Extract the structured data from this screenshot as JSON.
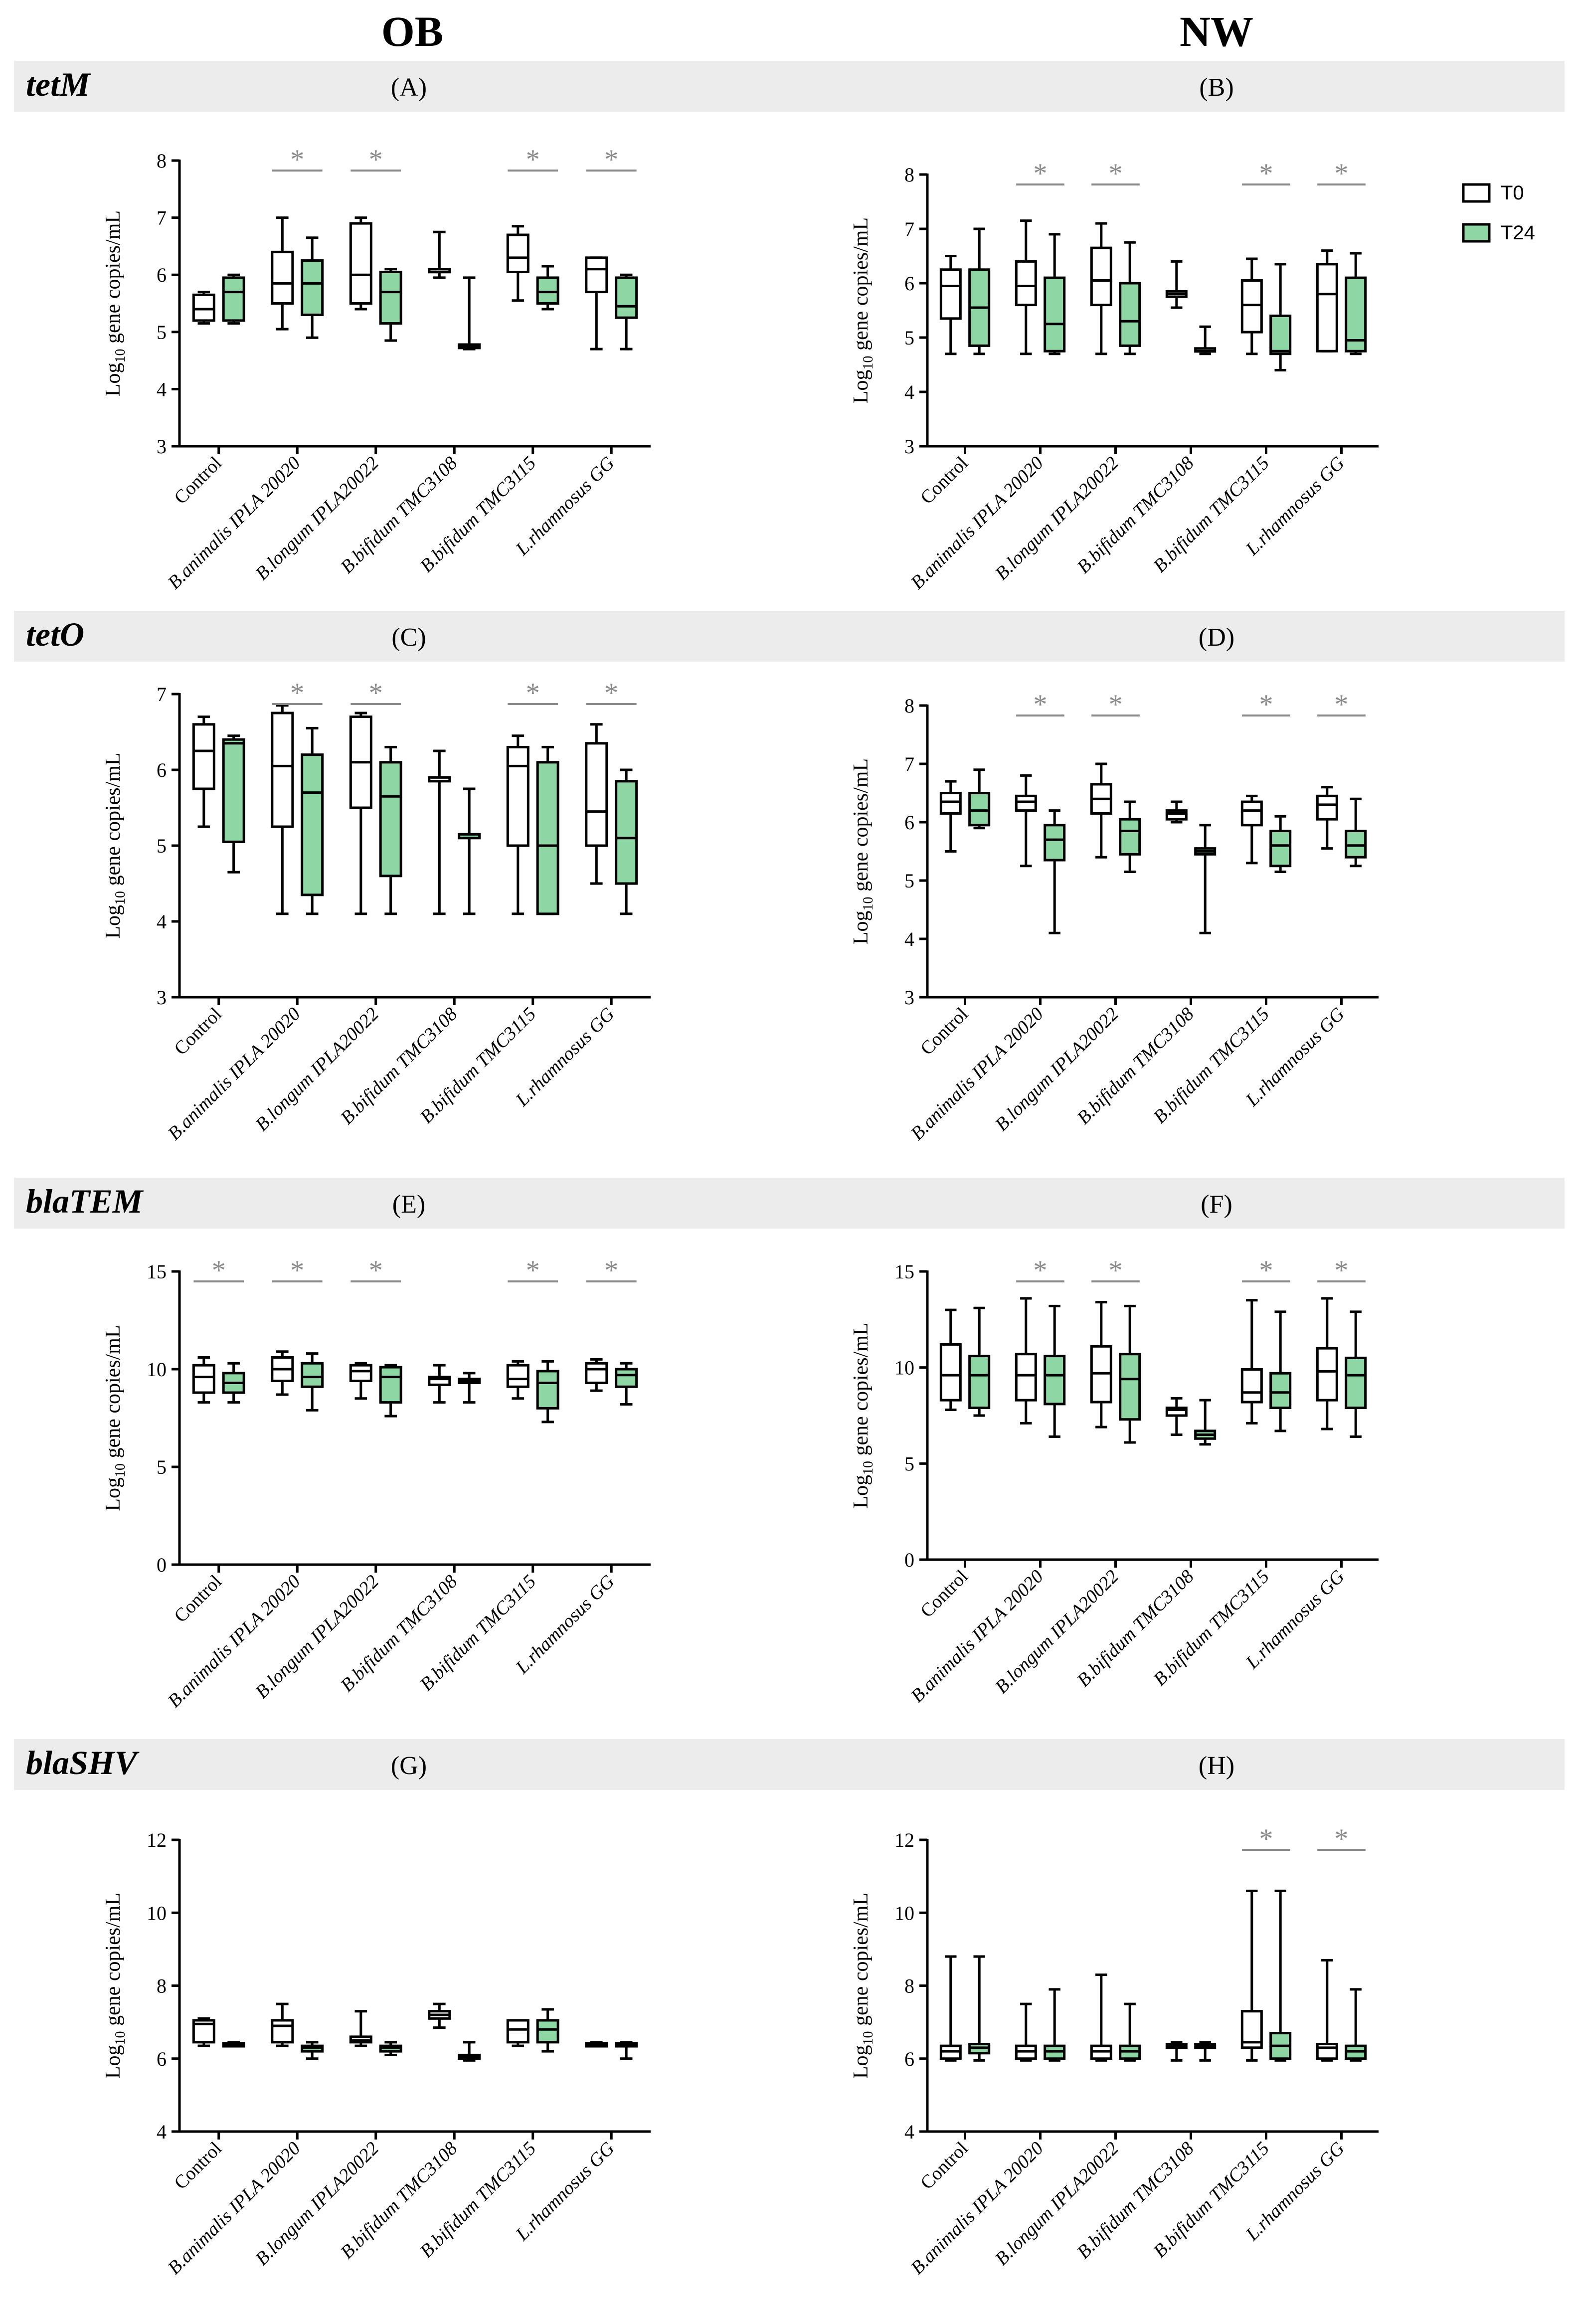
{
  "columns": {
    "left": "OB",
    "right": "NW"
  },
  "categories": [
    "Control",
    "B.animalis IPLA 20020",
    "B.longum IPLA20022",
    "B.bifidum TMC3108",
    "B.bifidum TMC3115",
    "L.rhamnosus GG"
  ],
  "legend": [
    {
      "label": "T0",
      "color": "#ffffff"
    },
    {
      "label": "T24",
      "color": "#8fd6a5"
    }
  ],
  "sig_marker": "*",
  "ylabel": {
    "prefix": "Log",
    "sub": "10",
    "suffix": " gene copies/mL"
  },
  "colors": {
    "band": "#ececec",
    "t0": "#ffffff",
    "t24": "#8fd6a5",
    "stroke": "#000000",
    "sig": "#8a8a8a"
  },
  "rows": [
    {
      "gene": "tetM",
      "panels": [
        "(A)",
        "(B)"
      ]
    },
    {
      "gene": "tetO",
      "panels": [
        "(C)",
        "(D)"
      ]
    },
    {
      "gene": "blaTEM",
      "panels": [
        "(E)",
        "(F)"
      ]
    },
    {
      "gene": "blaSHV",
      "panels": [
        "(G)",
        "(H)"
      ]
    }
  ],
  "chart_data": [
    {
      "panel": "(A)",
      "type": "boxplot",
      "gene": "tetM",
      "group": "OB",
      "ylim": [
        3,
        8
      ],
      "yticks": [
        3,
        4,
        5,
        6,
        7,
        8
      ],
      "significant": [
        false,
        true,
        true,
        false,
        true,
        true
      ],
      "series": [
        {
          "name": "T0",
          "boxes": [
            [
              5.15,
              5.2,
              5.4,
              5.65,
              5.7
            ],
            [
              5.05,
              5.5,
              5.85,
              6.4,
              7.0
            ],
            [
              5.4,
              5.5,
              6.0,
              6.9,
              7.0
            ],
            [
              5.95,
              6.05,
              6.1,
              6.1,
              6.75
            ],
            [
              5.55,
              6.05,
              6.3,
              6.7,
              6.85
            ],
            [
              4.7,
              5.7,
              6.1,
              6.3,
              6.3
            ]
          ]
        },
        {
          "name": "T24",
          "boxes": [
            [
              5.15,
              5.2,
              5.7,
              5.95,
              6.0
            ],
            [
              4.9,
              5.3,
              5.85,
              6.25,
              6.65
            ],
            [
              4.85,
              5.15,
              5.7,
              6.05,
              6.1
            ],
            [
              4.7,
              4.72,
              4.75,
              4.78,
              5.95
            ],
            [
              5.4,
              5.5,
              5.7,
              5.95,
              6.15
            ],
            [
              4.7,
              5.25,
              5.45,
              5.95,
              6.0
            ]
          ]
        }
      ]
    },
    {
      "panel": "(B)",
      "type": "boxplot",
      "gene": "tetM",
      "group": "NW",
      "ylim": [
        3,
        8
      ],
      "yticks": [
        3,
        4,
        5,
        6,
        7,
        8
      ],
      "significant": [
        false,
        true,
        true,
        false,
        true,
        true
      ],
      "series": [
        {
          "name": "T0",
          "boxes": [
            [
              4.7,
              5.35,
              5.95,
              6.25,
              6.5
            ],
            [
              4.7,
              5.6,
              5.95,
              6.4,
              7.15
            ],
            [
              4.7,
              5.6,
              6.05,
              6.65,
              7.1
            ],
            [
              5.55,
              5.75,
              5.8,
              5.85,
              6.4
            ],
            [
              4.7,
              5.1,
              5.6,
              6.05,
              6.45
            ],
            [
              4.75,
              4.75,
              5.8,
              6.35,
              6.6
            ]
          ]
        },
        {
          "name": "T24",
          "boxes": [
            [
              4.7,
              4.85,
              5.55,
              6.25,
              7.0
            ],
            [
              4.7,
              4.75,
              5.25,
              6.1,
              6.9
            ],
            [
              4.7,
              4.85,
              5.3,
              6.0,
              6.75
            ],
            [
              4.7,
              4.75,
              4.75,
              4.8,
              5.2
            ],
            [
              4.4,
              4.7,
              4.75,
              5.4,
              6.35
            ],
            [
              4.7,
              4.75,
              4.95,
              6.1,
              6.55
            ]
          ]
        }
      ]
    },
    {
      "panel": "(C)",
      "type": "boxplot",
      "gene": "tetO",
      "group": "OB",
      "ylim": [
        3,
        7
      ],
      "yticks": [
        3,
        4,
        5,
        6,
        7
      ],
      "significant": [
        false,
        true,
        true,
        false,
        true,
        true
      ],
      "series": [
        {
          "name": "T0",
          "boxes": [
            [
              5.25,
              5.75,
              6.25,
              6.6,
              6.7
            ],
            [
              4.1,
              5.25,
              6.05,
              6.75,
              6.85
            ],
            [
              4.1,
              5.5,
              6.1,
              6.7,
              6.75
            ],
            [
              4.1,
              5.85,
              5.9,
              5.9,
              6.25
            ],
            [
              4.1,
              5.0,
              6.05,
              6.3,
              6.45
            ],
            [
              4.5,
              5.0,
              5.45,
              6.35,
              6.6
            ]
          ]
        },
        {
          "name": "T24",
          "boxes": [
            [
              4.65,
              5.05,
              6.35,
              6.4,
              6.45
            ],
            [
              4.1,
              4.35,
              5.7,
              6.2,
              6.55
            ],
            [
              4.1,
              4.6,
              5.65,
              6.1,
              6.3
            ],
            [
              4.1,
              5.1,
              5.15,
              5.15,
              5.75
            ],
            [
              4.1,
              4.1,
              5.0,
              6.1,
              6.3
            ],
            [
              4.1,
              4.5,
              5.1,
              5.85,
              6.0
            ]
          ]
        }
      ]
    },
    {
      "panel": "(D)",
      "type": "boxplot",
      "gene": "tetO",
      "group": "NW",
      "ylim": [
        3,
        8
      ],
      "yticks": [
        3,
        4,
        5,
        6,
        7,
        8
      ],
      "significant": [
        false,
        true,
        true,
        false,
        true,
        true
      ],
      "series": [
        {
          "name": "T0",
          "boxes": [
            [
              5.5,
              6.15,
              6.35,
              6.5,
              6.7
            ],
            [
              5.25,
              6.2,
              6.35,
              6.45,
              6.8
            ],
            [
              5.4,
              6.15,
              6.4,
              6.65,
              7.0
            ],
            [
              6.0,
              6.05,
              6.15,
              6.2,
              6.35
            ],
            [
              5.3,
              5.95,
              6.2,
              6.35,
              6.45
            ],
            [
              5.55,
              6.05,
              6.3,
              6.45,
              6.6
            ]
          ]
        },
        {
          "name": "T24",
          "boxes": [
            [
              5.9,
              5.95,
              6.2,
              6.5,
              6.9
            ],
            [
              4.1,
              5.35,
              5.7,
              5.95,
              6.2
            ],
            [
              5.15,
              5.45,
              5.85,
              6.05,
              6.35
            ],
            [
              4.1,
              5.45,
              5.5,
              5.55,
              5.95
            ],
            [
              5.15,
              5.25,
              5.6,
              5.85,
              6.1
            ],
            [
              5.25,
              5.4,
              5.6,
              5.85,
              6.4
            ]
          ]
        }
      ]
    },
    {
      "panel": "(E)",
      "type": "boxplot",
      "gene": "blaTEM",
      "group": "OB",
      "ylim": [
        0,
        15
      ],
      "yticks": [
        0,
        5,
        10,
        15
      ],
      "significant": [
        true,
        true,
        true,
        false,
        true,
        true
      ],
      "series": [
        {
          "name": "T0",
          "boxes": [
            [
              8.3,
              8.8,
              9.6,
              10.2,
              10.6
            ],
            [
              8.7,
              9.4,
              10.0,
              10.6,
              10.9
            ],
            [
              8.5,
              9.4,
              9.9,
              10.2,
              10.3
            ],
            [
              8.3,
              9.2,
              9.5,
              9.6,
              10.2
            ],
            [
              8.5,
              9.1,
              9.5,
              10.2,
              10.4
            ],
            [
              8.9,
              9.3,
              10.0,
              10.3,
              10.5
            ]
          ]
        },
        {
          "name": "T24",
          "boxes": [
            [
              8.3,
              8.8,
              9.3,
              9.8,
              10.3
            ],
            [
              7.9,
              9.1,
              9.6,
              10.3,
              10.8
            ],
            [
              7.6,
              8.3,
              9.6,
              10.1,
              10.2
            ],
            [
              8.3,
              9.3,
              9.4,
              9.5,
              9.8
            ],
            [
              7.3,
              8.0,
              9.3,
              9.9,
              10.4
            ],
            [
              8.2,
              9.1,
              9.7,
              10.0,
              10.3
            ]
          ]
        }
      ]
    },
    {
      "panel": "(F)",
      "type": "boxplot",
      "gene": "blaTEM",
      "group": "NW",
      "ylim": [
        0,
        15
      ],
      "yticks": [
        0,
        5,
        10,
        15
      ],
      "significant": [
        false,
        true,
        true,
        false,
        true,
        true
      ],
      "series": [
        {
          "name": "T0",
          "boxes": [
            [
              7.8,
              8.3,
              9.6,
              11.2,
              13.0
            ],
            [
              7.1,
              8.3,
              9.6,
              10.7,
              13.6
            ],
            [
              6.9,
              8.2,
              9.7,
              11.1,
              13.4
            ],
            [
              6.5,
              7.5,
              7.8,
              7.9,
              8.4
            ],
            [
              7.1,
              8.2,
              8.7,
              9.9,
              13.5
            ],
            [
              6.8,
              8.3,
              9.8,
              11.0,
              13.6
            ]
          ]
        },
        {
          "name": "T24",
          "boxes": [
            [
              7.5,
              7.9,
              9.6,
              10.6,
              13.1
            ],
            [
              6.4,
              8.1,
              9.6,
              10.6,
              13.2
            ],
            [
              6.1,
              7.3,
              9.4,
              10.7,
              13.2
            ],
            [
              6.0,
              6.3,
              6.5,
              6.7,
              8.3
            ],
            [
              6.7,
              7.9,
              8.7,
              9.7,
              12.9
            ],
            [
              6.4,
              7.9,
              9.6,
              10.5,
              12.9
            ]
          ]
        }
      ]
    },
    {
      "panel": "(G)",
      "type": "boxplot",
      "gene": "blaSHV",
      "group": "OB",
      "ylim": [
        4,
        12
      ],
      "yticks": [
        4,
        6,
        8,
        10,
        12
      ],
      "significant": [
        false,
        false,
        false,
        false,
        false,
        false
      ],
      "series": [
        {
          "name": "T0",
          "boxes": [
            [
              6.35,
              6.45,
              6.95,
              7.05,
              7.1
            ],
            [
              6.35,
              6.45,
              6.9,
              7.05,
              7.5
            ],
            [
              6.35,
              6.45,
              6.5,
              6.6,
              7.3
            ],
            [
              6.85,
              7.1,
              7.2,
              7.3,
              7.5
            ],
            [
              6.35,
              6.45,
              6.8,
              7.05,
              7.05
            ],
            [
              6.35,
              6.38,
              6.4,
              6.42,
              6.45
            ]
          ]
        },
        {
          "name": "T24",
          "boxes": [
            [
              6.35,
              6.37,
              6.4,
              6.42,
              6.45
            ],
            [
              6.0,
              6.2,
              6.3,
              6.35,
              6.45
            ],
            [
              6.1,
              6.2,
              6.3,
              6.35,
              6.45
            ],
            [
              5.95,
              6.0,
              6.05,
              6.1,
              6.45
            ],
            [
              6.2,
              6.45,
              6.8,
              7.05,
              7.35
            ],
            [
              6.0,
              6.35,
              6.4,
              6.42,
              6.45
            ]
          ]
        }
      ]
    },
    {
      "panel": "(H)",
      "type": "boxplot",
      "gene": "blaSHV",
      "group": "NW",
      "ylim": [
        4,
        12
      ],
      "yticks": [
        4,
        6,
        8,
        10,
        12
      ],
      "significant": [
        false,
        false,
        false,
        false,
        true,
        true
      ],
      "series": [
        {
          "name": "T0",
          "boxes": [
            [
              5.95,
              6.0,
              6.2,
              6.35,
              8.8
            ],
            [
              5.95,
              6.0,
              6.2,
              6.35,
              7.5
            ],
            [
              5.95,
              6.0,
              6.2,
              6.35,
              8.3
            ],
            [
              5.95,
              6.3,
              6.35,
              6.4,
              6.45
            ],
            [
              5.95,
              6.3,
              6.45,
              7.3,
              10.6
            ],
            [
              5.95,
              6.0,
              6.3,
              6.4,
              8.7
            ]
          ]
        },
        {
          "name": "T24",
          "boxes": [
            [
              5.95,
              6.15,
              6.3,
              6.4,
              8.8
            ],
            [
              5.95,
              6.0,
              6.2,
              6.35,
              7.9
            ],
            [
              5.95,
              6.0,
              6.2,
              6.35,
              7.5
            ],
            [
              5.95,
              6.3,
              6.35,
              6.4,
              6.45
            ],
            [
              5.95,
              6.0,
              6.35,
              6.7,
              10.6
            ],
            [
              5.95,
              6.0,
              6.2,
              6.35,
              7.9
            ]
          ]
        }
      ]
    }
  ]
}
